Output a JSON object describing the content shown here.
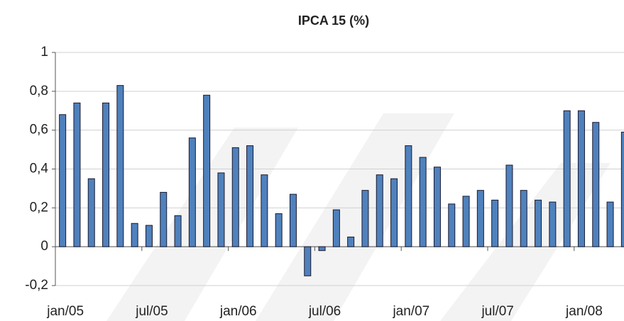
{
  "chart_data": {
    "type": "bar",
    "title": "IPCA 15 (%)",
    "categories": [
      "jan/05",
      null,
      null,
      null,
      null,
      null,
      "jul/05",
      null,
      null,
      null,
      null,
      null,
      "jan/06",
      null,
      null,
      null,
      null,
      null,
      "jul/06",
      null,
      null,
      null,
      null,
      null,
      "jan/07",
      null,
      null,
      null,
      null,
      null,
      "jul/07",
      null,
      null,
      null,
      null,
      null,
      "jan/08",
      null,
      null,
      null
    ],
    "values": [
      0.68,
      0.74,
      0.35,
      0.74,
      0.83,
      0.12,
      0.11,
      0.28,
      0.16,
      0.56,
      0.78,
      0.38,
      0.51,
      0.52,
      0.37,
      0.17,
      0.27,
      -0.15,
      -0.02,
      0.19,
      0.05,
      0.29,
      0.37,
      0.35,
      0.52,
      0.46,
      0.41,
      0.22,
      0.26,
      0.29,
      0.24,
      0.42,
      0.29,
      0.24,
      0.23,
      0.7,
      0.7,
      0.64,
      0.23,
      0.59
    ],
    "color": "#4f81bd",
    "ylim": [
      -0.2,
      1
    ],
    "yticks": [
      {
        "value": -0.2,
        "label": "-0,2"
      },
      0,
      {
        "value": 0.2,
        "label": "0,2"
      },
      {
        "value": 0.4,
        "label": "0,4"
      },
      {
        "value": 0.6,
        "label": "0,6"
      },
      {
        "value": 0.8,
        "label": "0,8"
      },
      1
    ],
    "grid": true
  }
}
